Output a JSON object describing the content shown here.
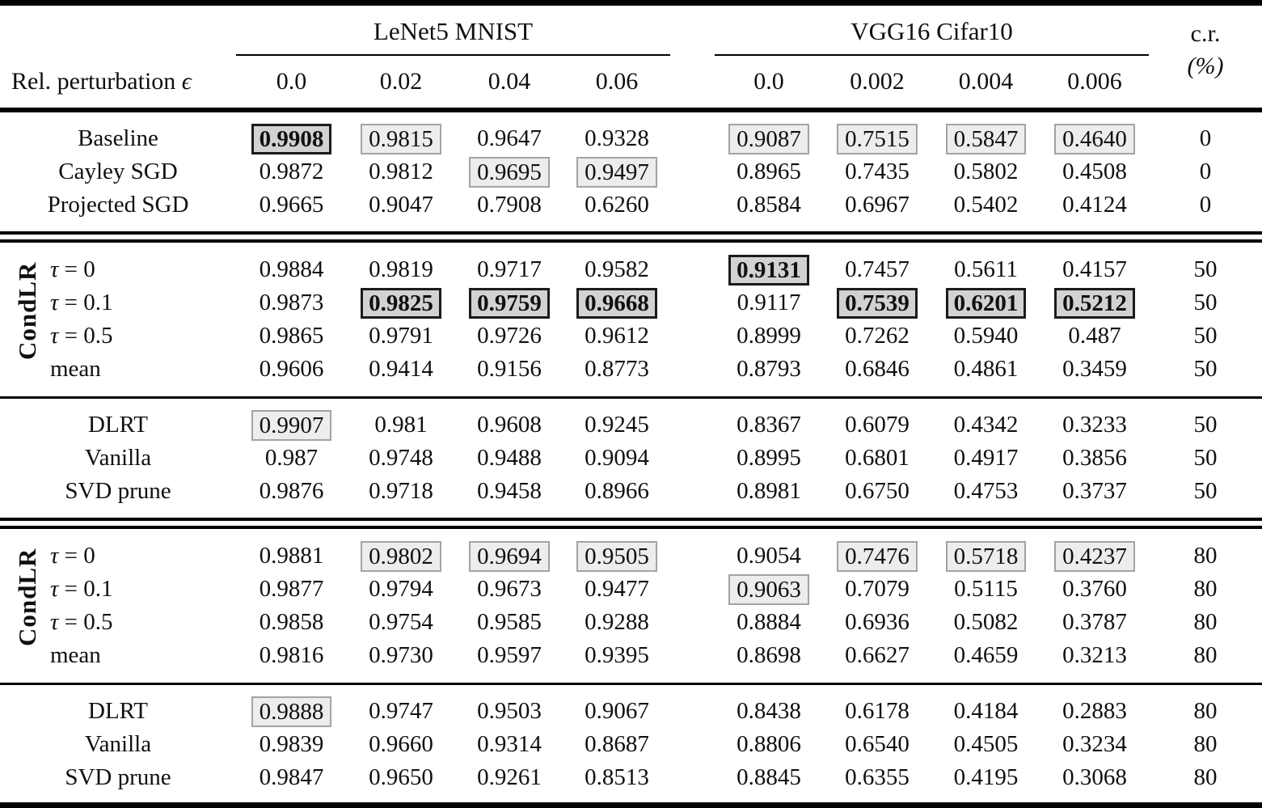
{
  "table": {
    "header": {
      "stub_header": "Rel. perturbation",
      "eps_symbol": "ϵ",
      "cr_line1": "c.r.",
      "cr_line2": "(%)",
      "groups": [
        {
          "label": "LeNet5 MNIST",
          "cols": [
            "0.0",
            "0.02",
            "0.04",
            "0.06"
          ]
        },
        {
          "label": "VGG16 Cifar10",
          "cols": [
            "0.0",
            "0.002",
            "0.004",
            "0.006"
          ]
        }
      ]
    },
    "highlight_colors": {
      "light_box_bg": "#ededed",
      "light_box_border": "#a3a3a3",
      "bold_box_bg": "#d2d2d2",
      "bold_box_border": "#1b1b1b"
    },
    "sections": [
      {
        "side_label": null,
        "rule_before": "none",
        "rows": [
          {
            "label": "Baseline",
            "cells": [
              {
                "v": "0.9908",
                "h": "bold"
              },
              {
                "v": "0.9815",
                "h": "light"
              },
              {
                "v": "0.9647",
                "h": "none"
              },
              {
                "v": "0.9328",
                "h": "none"
              },
              {
                "v": "0.9087",
                "h": "light"
              },
              {
                "v": "0.7515",
                "h": "light"
              },
              {
                "v": "0.5847",
                "h": "light"
              },
              {
                "v": "0.4640",
                "h": "light"
              }
            ],
            "cr": "0"
          },
          {
            "label": "Cayley SGD",
            "cells": [
              {
                "v": "0.9872",
                "h": "none"
              },
              {
                "v": "0.9812",
                "h": "none"
              },
              {
                "v": "0.9695",
                "h": "light"
              },
              {
                "v": "0.9497",
                "h": "light"
              },
              {
                "v": "0.8965",
                "h": "none"
              },
              {
                "v": "0.7435",
                "h": "none"
              },
              {
                "v": "0.5802",
                "h": "none"
              },
              {
                "v": "0.4508",
                "h": "none"
              }
            ],
            "cr": "0"
          },
          {
            "label": "Projected SGD",
            "cells": [
              {
                "v": "0.9665",
                "h": "none"
              },
              {
                "v": "0.9047",
                "h": "none"
              },
              {
                "v": "0.7908",
                "h": "none"
              },
              {
                "v": "0.6260",
                "h": "none"
              },
              {
                "v": "0.8584",
                "h": "none"
              },
              {
                "v": "0.6967",
                "h": "none"
              },
              {
                "v": "0.5402",
                "h": "none"
              },
              {
                "v": "0.4124",
                "h": "none"
              }
            ],
            "cr": "0"
          }
        ]
      },
      {
        "side_label": "CondLR",
        "rule_before": "double",
        "rows": [
          {
            "label": "τ = 0",
            "math": true,
            "cells": [
              {
                "v": "0.9884",
                "h": "none"
              },
              {
                "v": "0.9819",
                "h": "none"
              },
              {
                "v": "0.9717",
                "h": "none"
              },
              {
                "v": "0.9582",
                "h": "none"
              },
              {
                "v": "0.9131",
                "h": "bold"
              },
              {
                "v": "0.7457",
                "h": "none"
              },
              {
                "v": "0.5611",
                "h": "none"
              },
              {
                "v": "0.4157",
                "h": "none"
              }
            ],
            "cr": "50"
          },
          {
            "label": "τ = 0.1",
            "math": true,
            "cells": [
              {
                "v": "0.9873",
                "h": "none"
              },
              {
                "v": "0.9825",
                "h": "bold"
              },
              {
                "v": "0.9759",
                "h": "bold"
              },
              {
                "v": "0.9668",
                "h": "bold"
              },
              {
                "v": "0.9117",
                "h": "none"
              },
              {
                "v": "0.7539",
                "h": "bold"
              },
              {
                "v": "0.6201",
                "h": "bold"
              },
              {
                "v": "0.5212",
                "h": "bold"
              }
            ],
            "cr": "50"
          },
          {
            "label": "τ = 0.5",
            "math": true,
            "cells": [
              {
                "v": "0.9865",
                "h": "none"
              },
              {
                "v": "0.9791",
                "h": "none"
              },
              {
                "v": "0.9726",
                "h": "none"
              },
              {
                "v": "0.9612",
                "h": "none"
              },
              {
                "v": "0.8999",
                "h": "none"
              },
              {
                "v": "0.7262",
                "h": "none"
              },
              {
                "v": "0.5940",
                "h": "none"
              },
              {
                "v": "0.487",
                "h": "none"
              }
            ],
            "cr": "50"
          },
          {
            "label": "mean",
            "cells": [
              {
                "v": "0.9606",
                "h": "none"
              },
              {
                "v": "0.9414",
                "h": "none"
              },
              {
                "v": "0.9156",
                "h": "none"
              },
              {
                "v": "0.8773",
                "h": "none"
              },
              {
                "v": "0.8793",
                "h": "none"
              },
              {
                "v": "0.6846",
                "h": "none"
              },
              {
                "v": "0.4861",
                "h": "none"
              },
              {
                "v": "0.3459",
                "h": "none"
              }
            ],
            "cr": "50"
          }
        ]
      },
      {
        "side_label": null,
        "rule_before": "single",
        "rows": [
          {
            "label": "DLRT",
            "cells": [
              {
                "v": "0.9907",
                "h": "light"
              },
              {
                "v": "0.981",
                "h": "none"
              },
              {
                "v": "0.9608",
                "h": "none"
              },
              {
                "v": "0.9245",
                "h": "none"
              },
              {
                "v": "0.8367",
                "h": "none"
              },
              {
                "v": "0.6079",
                "h": "none"
              },
              {
                "v": "0.4342",
                "h": "none"
              },
              {
                "v": "0.3233",
                "h": "none"
              }
            ],
            "cr": "50"
          },
          {
            "label": "Vanilla",
            "cells": [
              {
                "v": "0.987",
                "h": "none"
              },
              {
                "v": "0.9748",
                "h": "none"
              },
              {
                "v": "0.9488",
                "h": "none"
              },
              {
                "v": "0.9094",
                "h": "none"
              },
              {
                "v": "0.8995",
                "h": "none"
              },
              {
                "v": "0.6801",
                "h": "none"
              },
              {
                "v": "0.4917",
                "h": "none"
              },
              {
                "v": "0.3856",
                "h": "none"
              }
            ],
            "cr": "50"
          },
          {
            "label": "SVD prune",
            "cells": [
              {
                "v": "0.9876",
                "h": "none"
              },
              {
                "v": "0.9718",
                "h": "none"
              },
              {
                "v": "0.9458",
                "h": "none"
              },
              {
                "v": "0.8966",
                "h": "none"
              },
              {
                "v": "0.8981",
                "h": "none"
              },
              {
                "v": "0.6750",
                "h": "none"
              },
              {
                "v": "0.4753",
                "h": "none"
              },
              {
                "v": "0.3737",
                "h": "none"
              }
            ],
            "cr": "50"
          }
        ]
      },
      {
        "side_label": "CondLR",
        "rule_before": "double",
        "rows": [
          {
            "label": "τ = 0",
            "math": true,
            "cells": [
              {
                "v": "0.9881",
                "h": "none"
              },
              {
                "v": "0.9802",
                "h": "light"
              },
              {
                "v": "0.9694",
                "h": "light"
              },
              {
                "v": "0.9505",
                "h": "light"
              },
              {
                "v": "0.9054",
                "h": "none"
              },
              {
                "v": "0.7476",
                "h": "light"
              },
              {
                "v": "0.5718",
                "h": "light"
              },
              {
                "v": "0.4237",
                "h": "light"
              }
            ],
            "cr": "80"
          },
          {
            "label": "τ = 0.1",
            "math": true,
            "cells": [
              {
                "v": "0.9877",
                "h": "none"
              },
              {
                "v": "0.9794",
                "h": "none"
              },
              {
                "v": "0.9673",
                "h": "none"
              },
              {
                "v": "0.9477",
                "h": "none"
              },
              {
                "v": "0.9063",
                "h": "light"
              },
              {
                "v": "0.7079",
                "h": "none"
              },
              {
                "v": "0.5115",
                "h": "none"
              },
              {
                "v": "0.3760",
                "h": "none"
              }
            ],
            "cr": "80"
          },
          {
            "label": "τ = 0.5",
            "math": true,
            "cells": [
              {
                "v": "0.9858",
                "h": "none"
              },
              {
                "v": "0.9754",
                "h": "none"
              },
              {
                "v": "0.9585",
                "h": "none"
              },
              {
                "v": "0.9288",
                "h": "none"
              },
              {
                "v": "0.8884",
                "h": "none"
              },
              {
                "v": "0.6936",
                "h": "none"
              },
              {
                "v": "0.5082",
                "h": "none"
              },
              {
                "v": "0.3787",
                "h": "none"
              }
            ],
            "cr": "80"
          },
          {
            "label": "mean",
            "cells": [
              {
                "v": "0.9816",
                "h": "none"
              },
              {
                "v": "0.9730",
                "h": "none"
              },
              {
                "v": "0.9597",
                "h": "none"
              },
              {
                "v": "0.9395",
                "h": "none"
              },
              {
                "v": "0.8698",
                "h": "none"
              },
              {
                "v": "0.6627",
                "h": "none"
              },
              {
                "v": "0.4659",
                "h": "none"
              },
              {
                "v": "0.3213",
                "h": "none"
              }
            ],
            "cr": "80"
          }
        ]
      },
      {
        "side_label": null,
        "rule_before": "single",
        "rows": [
          {
            "label": "DLRT",
            "cells": [
              {
                "v": "0.9888",
                "h": "light"
              },
              {
                "v": "0.9747",
                "h": "none"
              },
              {
                "v": "0.9503",
                "h": "none"
              },
              {
                "v": "0.9067",
                "h": "none"
              },
              {
                "v": "0.8438",
                "h": "none"
              },
              {
                "v": "0.6178",
                "h": "none"
              },
              {
                "v": "0.4184",
                "h": "none"
              },
              {
                "v": "0.2883",
                "h": "none"
              }
            ],
            "cr": "80"
          },
          {
            "label": "Vanilla",
            "cells": [
              {
                "v": "0.9839",
                "h": "none"
              },
              {
                "v": "0.9660",
                "h": "none"
              },
              {
                "v": "0.9314",
                "h": "none"
              },
              {
                "v": "0.8687",
                "h": "none"
              },
              {
                "v": "0.8806",
                "h": "none"
              },
              {
                "v": "0.6540",
                "h": "none"
              },
              {
                "v": "0.4505",
                "h": "none"
              },
              {
                "v": "0.3234",
                "h": "none"
              }
            ],
            "cr": "80"
          },
          {
            "label": "SVD prune",
            "cells": [
              {
                "v": "0.9847",
                "h": "none"
              },
              {
                "v": "0.9650",
                "h": "none"
              },
              {
                "v": "0.9261",
                "h": "none"
              },
              {
                "v": "0.8513",
                "h": "none"
              },
              {
                "v": "0.8845",
                "h": "none"
              },
              {
                "v": "0.6355",
                "h": "none"
              },
              {
                "v": "0.4195",
                "h": "none"
              },
              {
                "v": "0.3068",
                "h": "none"
              }
            ],
            "cr": "80"
          }
        ]
      }
    ]
  }
}
